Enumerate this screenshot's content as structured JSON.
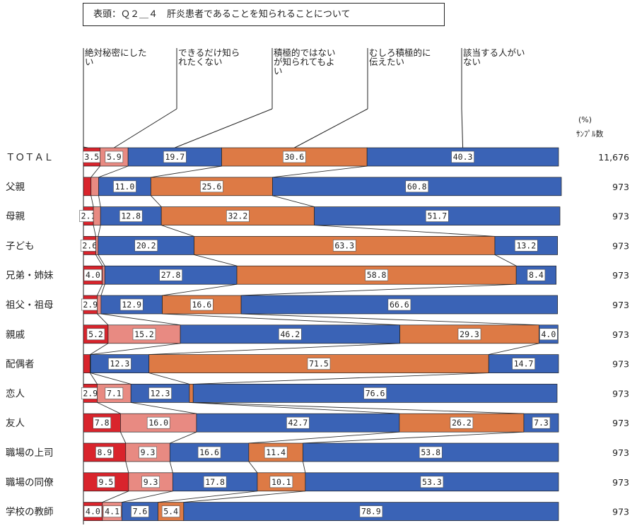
{
  "title": "表頭：Ｑ２＿４　肝炎患者であることを知られることについて",
  "unit_label": "(%)",
  "sample_header": "ｻﾝﾌﾟﾙ数",
  "chart_data": {
    "type": "bar",
    "orientation": "horizontal",
    "stacked": true,
    "percent_stacked": true,
    "legend_placement": "top",
    "series": [
      {
        "name": "絶対秘密にしたい",
        "color": "#d9242c",
        "values": [
          3.5,
          1.6,
          2.1,
          2.6,
          4.0,
          2.9,
          5.2,
          1.4,
          2.9,
          7.8,
          8.9,
          9.5,
          4.0
        ]
      },
      {
        "name": "できるだけ知られたくない",
        "color": "#e88a82",
        "values": [
          5.9,
          1.6,
          1.5,
          0.5,
          0.5,
          0.8,
          15.2,
          0.1,
          7.1,
          16.0,
          9.3,
          9.3,
          4.1
        ]
      },
      {
        "name": "積極的ではないが知られてもよい",
        "color": "#3a63b6",
        "values": [
          19.7,
          11.0,
          12.8,
          20.2,
          27.8,
          12.9,
          46.2,
          12.3,
          12.3,
          42.7,
          16.6,
          17.8,
          7.6
        ]
      },
      {
        "name": "むしろ積極的に伝えたい",
        "color": "#dd7a45",
        "values": [
          30.6,
          25.6,
          32.2,
          63.3,
          58.8,
          16.6,
          29.3,
          71.5,
          0.8,
          26.2,
          11.4,
          10.1,
          5.4
        ]
      },
      {
        "name": "該当する人がいない",
        "color": "#3a63b6",
        "values": [
          40.3,
          60.8,
          51.7,
          13.2,
          8.4,
          66.6,
          4.0,
          14.7,
          76.6,
          7.3,
          53.8,
          53.3,
          78.9
        ]
      }
    ],
    "rows": [
      {
        "label": "ＴＯＴＡＬ",
        "sample": "11,676"
      },
      {
        "label": "父親",
        "sample": "973"
      },
      {
        "label": "母親",
        "sample": "973"
      },
      {
        "label": "子ども",
        "sample": "973"
      },
      {
        "label": "兄弟・姉妹",
        "sample": "973"
      },
      {
        "label": "祖父・祖母",
        "sample": "973"
      },
      {
        "label": "親戚",
        "sample": "973"
      },
      {
        "label": "配偶者",
        "sample": "973"
      },
      {
        "label": "恋人",
        "sample": "973"
      },
      {
        "label": "友人",
        "sample": "973"
      },
      {
        "label": "職場の上司",
        "sample": "973"
      },
      {
        "label": "職場の同僚",
        "sample": "973"
      },
      {
        "label": "学校の教師",
        "sample": "973"
      }
    ],
    "data_labels": [
      [
        "3.5",
        "5.9",
        "19.7",
        "30.6",
        "40.3"
      ],
      [
        "",
        "",
        "11.0",
        "25.6",
        "60.8"
      ],
      [
        "2.1",
        "",
        "12.8",
        "32.2",
        "51.7"
      ],
      [
        "2.6",
        "",
        "20.2",
        "63.3",
        "13.2"
      ],
      [
        "4.0",
        "",
        "27.8",
        "58.8",
        "8.4"
      ],
      [
        "2.9",
        "",
        "12.9",
        "16.6",
        "66.6"
      ],
      [
        "5.2",
        "15.2",
        "46.2",
        "29.3",
        "4.0"
      ],
      [
        "",
        "",
        "12.3",
        "71.5",
        "14.7"
      ],
      [
        "2.9",
        "7.1",
        "12.3",
        "",
        "76.6"
      ],
      [
        "7.8",
        "16.0",
        "42.7",
        "26.2",
        "7.3"
      ],
      [
        "8.9",
        "9.3",
        "16.6",
        "11.4",
        "53.8"
      ],
      [
        "9.5",
        "9.3",
        "17.8",
        "10.1",
        "53.3"
      ],
      [
        "4.0",
        "4.1",
        "7.6",
        "5.4",
        "78.9"
      ]
    ]
  }
}
